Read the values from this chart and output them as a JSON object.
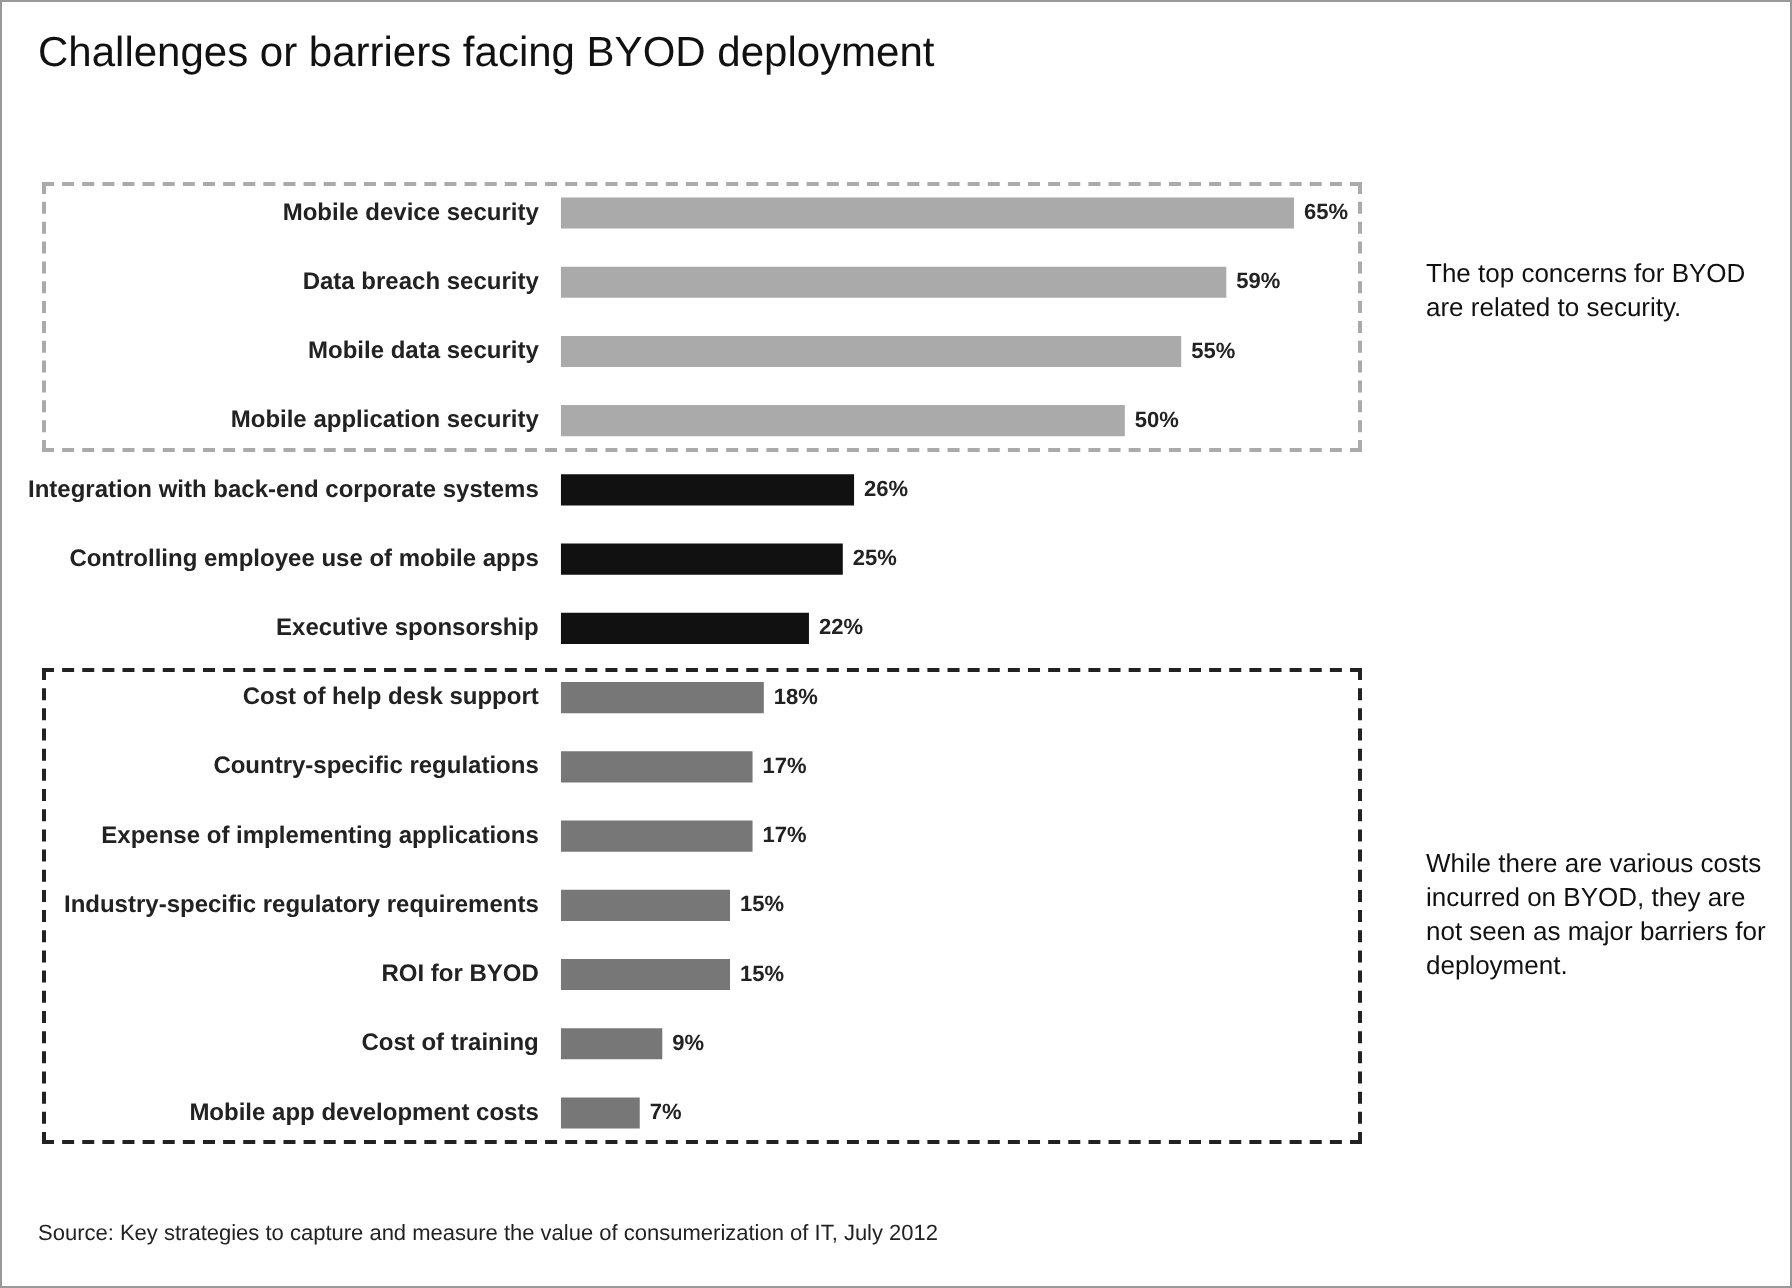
{
  "chart_data": {
    "type": "bar",
    "orientation": "horizontal",
    "title": "Challenges or barriers facing BYOD deployment",
    "categories": [
      "Mobile device security",
      "Data breach security",
      "Mobile data security",
      "Mobile application security",
      "Integration with back-end corporate systems",
      "Controlling employee use of mobile apps",
      "Executive sponsorship",
      "Cost of help desk support",
      "Country-specific regulations",
      "Expense of implementing applications",
      "Industry-specific regulatory requirements",
      "ROI for BYOD",
      "Cost of training",
      "Mobile app development costs"
    ],
    "values": [
      65,
      59,
      55,
      50,
      26,
      25,
      22,
      18,
      17,
      17,
      15,
      15,
      9,
      7
    ],
    "colors": [
      "#aaaaaa",
      "#aaaaaa",
      "#aaaaaa",
      "#aaaaaa",
      "#111111",
      "#111111",
      "#111111",
      "#777777",
      "#777777",
      "#777777",
      "#777777",
      "#777777",
      "#777777",
      "#777777"
    ],
    "value_labels": [
      "65%",
      "59%",
      "55%",
      "50%",
      "26%",
      "25%",
      "22%",
      "18%",
      "17%",
      "17%",
      "15%",
      "15%",
      "9%",
      "7%"
    ],
    "tick_labels": "y",
    "legend": false,
    "annotations": [
      "The top concerns for BYOD are related to security.",
      "While there are various costs incurred on BYOD, they are not seen as major barriers for deployment.",
      "Source: Key strategies to capture and measure the value of consumerization of IT, July 2012"
    ]
  }
}
